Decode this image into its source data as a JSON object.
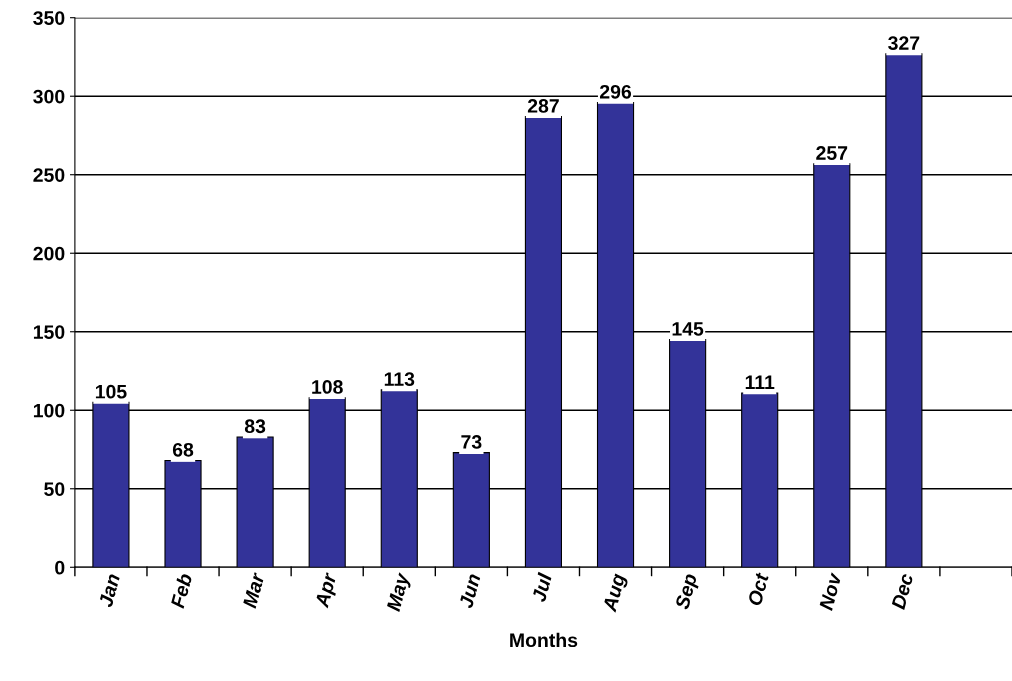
{
  "chart_data": {
    "type": "bar",
    "xlabel": "Months",
    "categories": [
      "Jan",
      "Feb",
      "Mar",
      "Apr",
      "May",
      "Jun",
      "Jul",
      "Aug",
      "Sep",
      "Oct",
      "Nov",
      "Dec"
    ],
    "values": [
      105,
      68,
      83,
      108,
      113,
      73,
      287,
      296,
      145,
      111,
      257,
      327
    ],
    "color": "#333399",
    "ylim": [
      0,
      350
    ],
    "yticks": [
      0,
      50,
      100,
      150,
      200,
      250,
      300,
      350
    ],
    "grid": "y",
    "data_labels": true
  }
}
